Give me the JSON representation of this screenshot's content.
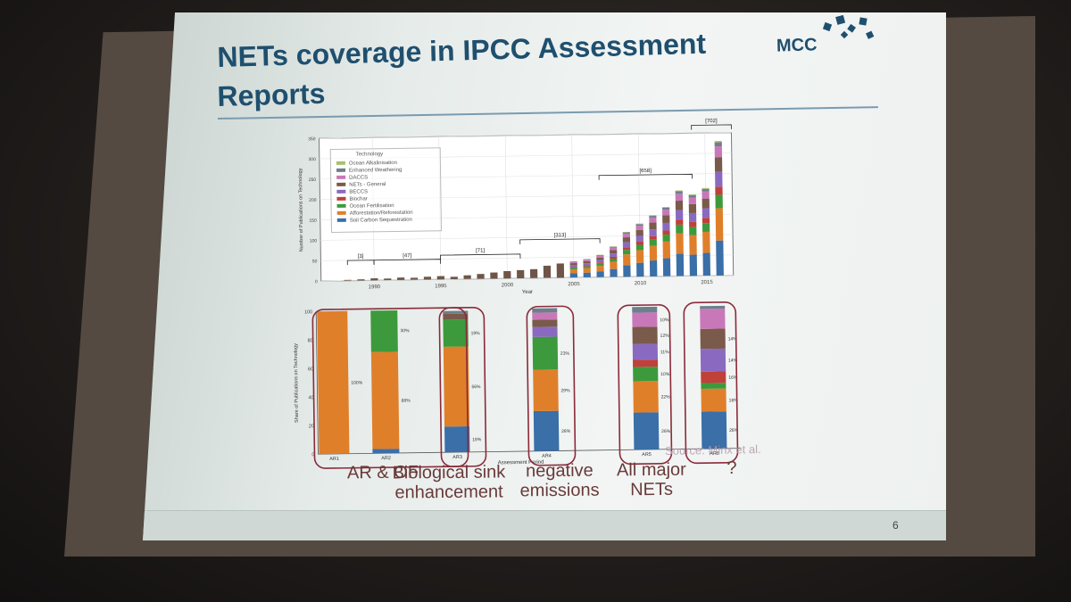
{
  "slide": {
    "title_line1": "NETs coverage in IPCC Assessment",
    "title_line2": "Reports",
    "logo_text": "MCC",
    "slide_number": "6",
    "source_note": "Source: Minx et al."
  },
  "legend": {
    "title": "Technology",
    "items": [
      {
        "label": "Ocean Alkalinisation",
        "color": "#a9c06a"
      },
      {
        "label": "Enhanced Weathering",
        "color": "#6e7f8c"
      },
      {
        "label": "DACCS",
        "color": "#c878b8"
      },
      {
        "label": "NETs - General",
        "color": "#7a5a4a"
      },
      {
        "label": "BECCS",
        "color": "#8a6ac0"
      },
      {
        "label": "Biochar",
        "color": "#c0403a"
      },
      {
        "label": "Ocean Fertilisation",
        "color": "#3c9a3c"
      },
      {
        "label": "Afforestation/Reforestation",
        "color": "#e07f2a"
      },
      {
        "label": "Soil Carbon Sequestration",
        "color": "#3a6fa8"
      }
    ]
  },
  "chart_data": [
    {
      "type": "bar",
      "title": "",
      "xlabel": "Year",
      "ylabel": "Number of Publications on Technology",
      "ylim": [
        0,
        350
      ],
      "yticks": [
        "0",
        "50",
        "100",
        "150",
        "200",
        "250",
        "300",
        "350"
      ],
      "xticks": [
        "1990",
        "1995",
        "2000",
        "2005",
        "2010",
        "2015"
      ],
      "x": [
        1988,
        1989,
        1990,
        1991,
        1992,
        1993,
        1994,
        1995,
        1996,
        1997,
        1998,
        1999,
        2000,
        2001,
        2002,
        2003,
        2004,
        2005,
        2006,
        2007,
        2008,
        2009,
        2010,
        2011,
        2012,
        2013,
        2014,
        2015,
        2016
      ],
      "values": [
        2,
        3,
        5,
        4,
        6,
        5,
        7,
        8,
        6,
        9,
        12,
        15,
        18,
        20,
        22,
        30,
        35,
        40,
        45,
        55,
        75,
        110,
        130,
        150,
        170,
        210,
        200,
        215,
        330
      ],
      "period_brackets": [
        {
          "label": "[3]",
          "from": 1988,
          "to": 1990
        },
        {
          "label": "[47]",
          "from": 1990,
          "to": 1995
        },
        {
          "label": "[71]",
          "from": 1995,
          "to": 2001
        },
        {
          "label": "[313]",
          "from": 2001,
          "to": 2007
        },
        {
          "label": "[658]",
          "from": 2007,
          "to": 2014
        },
        {
          "label": "[702]",
          "from": 2014,
          "to": 2017
        }
      ],
      "grid": true,
      "legend_position": "top-left"
    },
    {
      "type": "bar",
      "title": "",
      "xlabel": "Assessment Period",
      "ylabel": "Share of Publications on Technology",
      "ylim": [
        0,
        100
      ],
      "yticks": [
        "0",
        "20",
        "40",
        "60",
        "80",
        "100"
      ],
      "categories": [
        "AR1",
        "AR2",
        "AR3",
        "AR4",
        "AR5",
        "AR6"
      ],
      "series": [
        {
          "name": "Soil Carbon Sequestration",
          "values": [
            0,
            3,
            18,
            28,
            26,
            26
          ]
        },
        {
          "name": "Afforestation/Reforestation",
          "values": [
            100,
            68,
            56,
            29,
            22,
            16
          ]
        },
        {
          "name": "Ocean Fertilisation",
          "values": [
            0,
            30,
            19,
            23,
            10,
            4
          ]
        },
        {
          "name": "Biochar",
          "values": [
            0,
            0,
            0,
            0,
            5,
            8
          ]
        },
        {
          "name": "BECCS",
          "values": [
            0,
            0,
            0,
            7,
            11,
            16
          ]
        },
        {
          "name": "NETs - General",
          "values": [
            0,
            0,
            4,
            5,
            12,
            14
          ]
        },
        {
          "name": "DACCS",
          "values": [
            0,
            0,
            0,
            5,
            10,
            14
          ]
        },
        {
          "name": "Enhanced Weathering",
          "values": [
            0,
            0,
            2,
            3,
            4,
            2
          ]
        }
      ],
      "data_labels": [
        [
          "100%"
        ],
        [
          "68%",
          "30%"
        ],
        [
          "18%",
          "56%",
          "19%"
        ],
        [
          "28%",
          "29%",
          "23%"
        ],
        [
          "26%",
          "22%",
          "10%",
          "11%",
          "12%",
          "10%"
        ],
        [
          "26%",
          "16%",
          "16%",
          "14%",
          "14%"
        ]
      ],
      "grid": false
    }
  ],
  "captions": [
    {
      "text": "AR & OF"
    },
    {
      "text": "Biological sink enhancement"
    },
    {
      "text": "negative emissions"
    },
    {
      "text": "All major NETs"
    },
    {
      "text": "?"
    }
  ]
}
